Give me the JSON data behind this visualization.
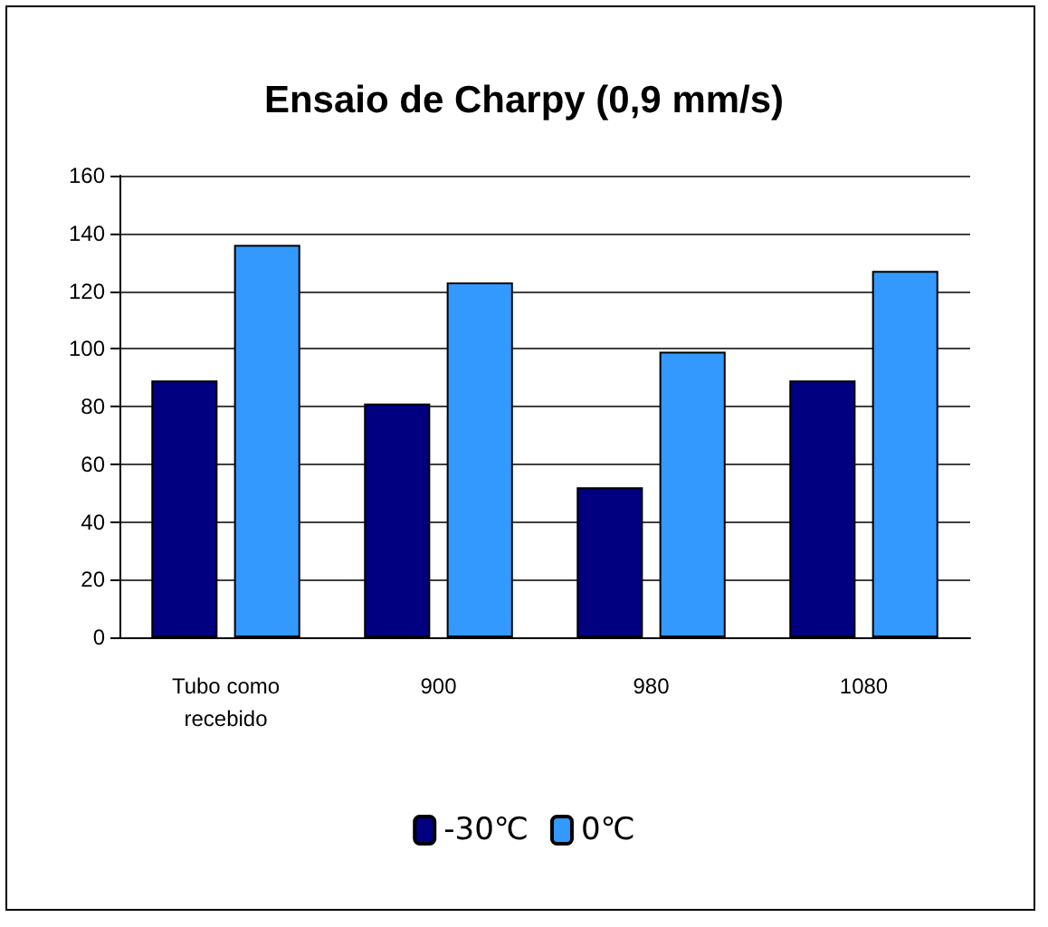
{
  "chart_data": {
    "type": "bar",
    "title": "Ensaio de Charpy (0,9 mm/s)",
    "categories": [
      "Tubo como\nrecebido",
      "900",
      "980",
      "1080"
    ],
    "series": [
      {
        "name": "-30℃",
        "color": "#000080",
        "values": [
          89,
          81,
          52,
          89
        ]
      },
      {
        "name": "0℃",
        "color": "#3399ff",
        "values": [
          136,
          123,
          99,
          127
        ]
      }
    ],
    "ylim": [
      0,
      160
    ],
    "yticks": [
      0,
      20,
      40,
      60,
      80,
      100,
      120,
      140,
      160
    ],
    "grid": "y",
    "legend": "bottom"
  }
}
